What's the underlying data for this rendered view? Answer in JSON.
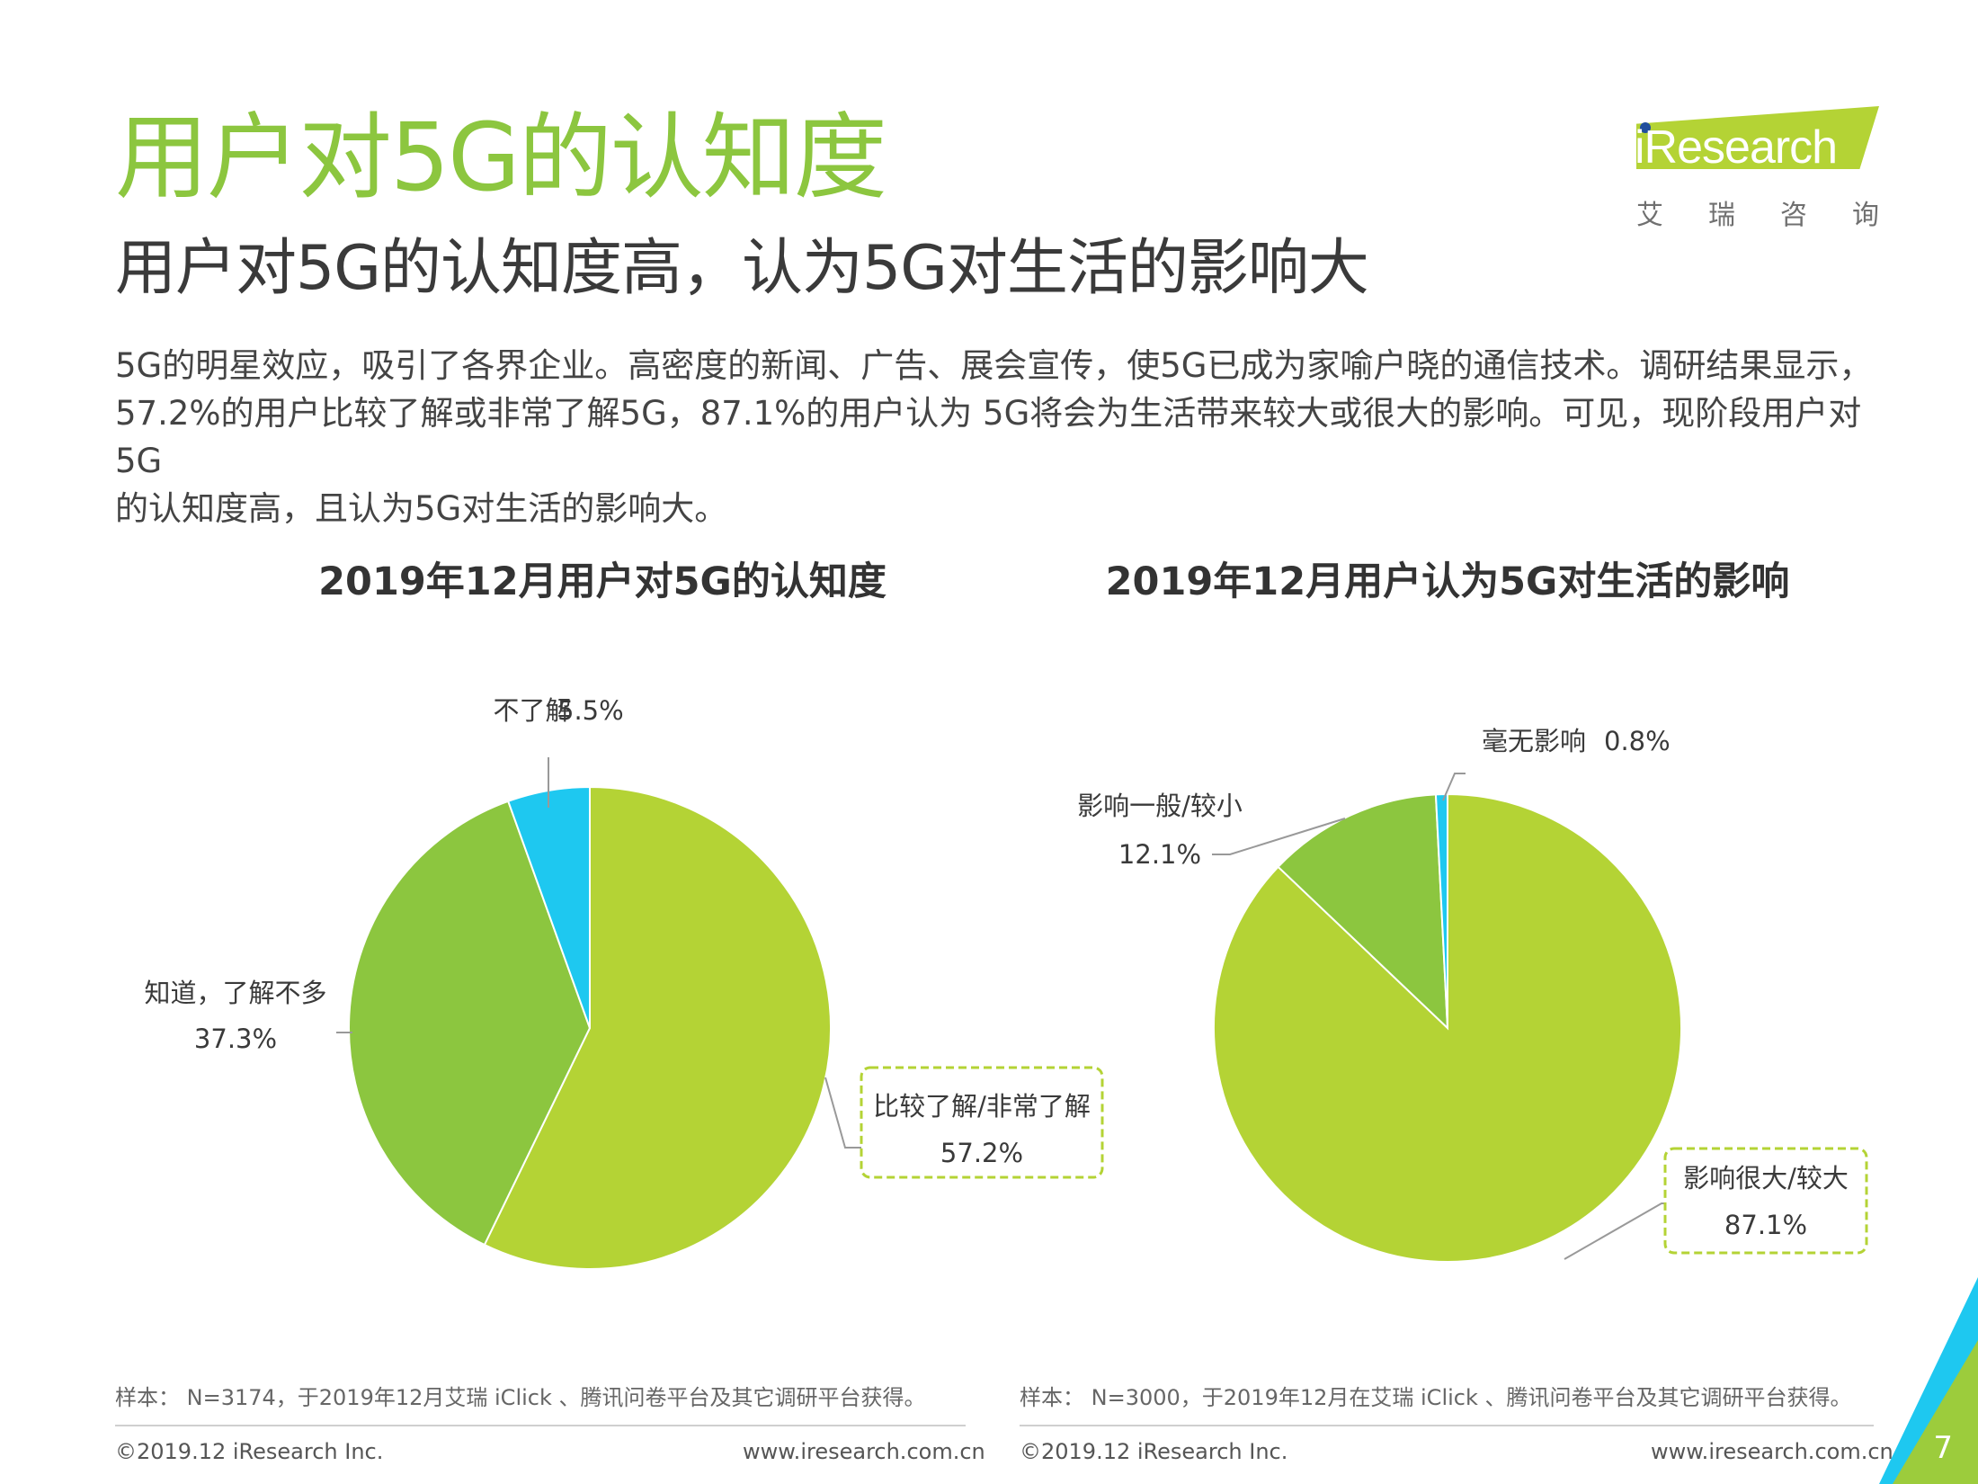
{
  "page": {
    "title": "用户对5G的认知度",
    "subtitle": "用户对5G的认知度高，认为5G对生活的影响大",
    "body_lines": [
      "5G的明星效应，吸引了各界企业。高密度的新闻、广告、展会宣传，使5G已成为家喻户晓的通信技术。调研结果显示，",
      "57.2%的用户比较了解或非常了解5G，87.1%的用户认为 5G将会为生活带来较大或很大的影响。可见，现阶段用户对5G",
      "的认知度高，且认为5G对生活的影响大。"
    ],
    "page_number": "7"
  },
  "logo": {
    "text": "iResearch",
    "cn_chars": [
      "艾",
      "瑞",
      "咨",
      "询"
    ]
  },
  "colors": {
    "accent_green": "#8cc63f",
    "slice_lime": "#b4d335",
    "slice_green": "#8cc63f",
    "slice_cyan": "#1ec8f0"
  },
  "chart_data": [
    {
      "type": "pie",
      "title": "2019年12月用户对5G的认知度",
      "slices": [
        {
          "name": "比较了解/非常了解",
          "value": 57.2,
          "label": "57.2%",
          "color": "#b4d335"
        },
        {
          "name": "知道，了解不多",
          "value": 37.3,
          "label": "37.3%",
          "color": "#8cc63f"
        },
        {
          "name": "不了解",
          "value": 5.5,
          "label": "5.5%",
          "color": "#1ec8f0"
        }
      ],
      "highlighted": "比较了解/非常了解"
    },
    {
      "type": "pie",
      "title": "2019年12月用户认为5G对生活的影响",
      "slices": [
        {
          "name": "影响很大/较大",
          "value": 87.1,
          "label": "87.1%",
          "color": "#b4d335"
        },
        {
          "name": "影响一般/较小",
          "value": 12.1,
          "label": "12.1%",
          "color": "#8cc63f"
        },
        {
          "name": "毫无影响",
          "value": 0.8,
          "label": "0.8%",
          "color": "#1ec8f0"
        }
      ],
      "highlighted": "影响很大/较大"
    }
  ],
  "notes": {
    "left": "样本： N=3174，于2019年12月艾瑞 iClick 、腾讯问卷平台及其它调研平台获得。",
    "right": "样本： N=3000，于2019年12月在艾瑞 iClick 、腾讯问卷平台及其它调研平台获得。"
  },
  "footer": {
    "left_copyright": "©2019.12 iResearch Inc.",
    "left_url": "www.iresearch.com.cn",
    "right_copyright": "©2019.12  iResearch Inc.",
    "right_url": "www.iresearch.com.cn"
  }
}
